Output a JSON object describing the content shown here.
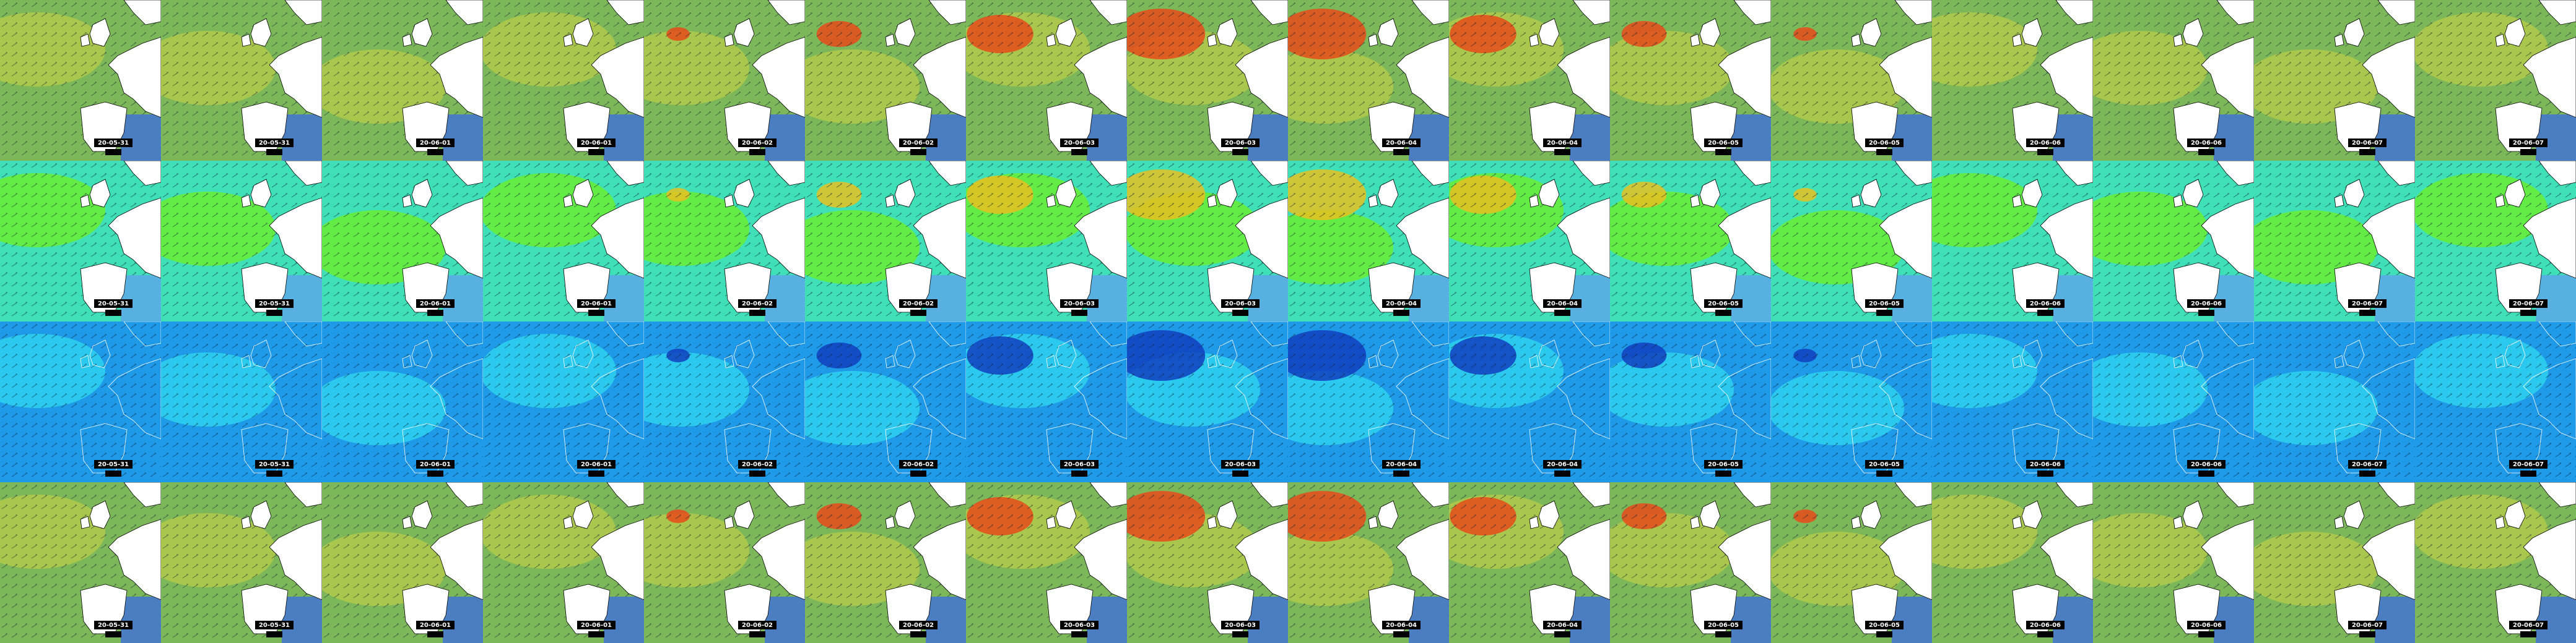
{
  "rows": [
    {
      "tiles": [
        {
          "date": "20-05-31"
        },
        {
          "date": "20-05-31"
        },
        {
          "date": "20-06-01"
        },
        {
          "date": "20-06-01"
        },
        {
          "date": "20-06-02"
        },
        {
          "date": "20-06-02"
        },
        {
          "date": "20-06-03"
        },
        {
          "date": "20-06-03"
        },
        {
          "date": "20-06-04"
        },
        {
          "date": "20-06-04"
        },
        {
          "date": "20-06-05"
        },
        {
          "date": "20-06-05"
        },
        {
          "date": "20-06-06"
        },
        {
          "date": "20-06-06"
        },
        {
          "date": "20-06-07"
        },
        {
          "date": "20-06-07"
        }
      ]
    },
    {
      "tiles": [
        {
          "date": "20-05-31"
        },
        {
          "date": "20-05-31"
        },
        {
          "date": "20-06-01"
        },
        {
          "date": "20-06-01"
        },
        {
          "date": "20-06-02"
        },
        {
          "date": "20-06-02"
        },
        {
          "date": "20-06-03"
        },
        {
          "date": "20-06-03"
        },
        {
          "date": "20-06-04"
        },
        {
          "date": "20-06-04"
        },
        {
          "date": "20-06-05"
        },
        {
          "date": "20-06-05"
        },
        {
          "date": "20-06-06"
        },
        {
          "date": "20-06-06"
        },
        {
          "date": "20-06-07"
        },
        {
          "date": "20-06-07"
        }
      ]
    },
    {
      "tiles": [
        {
          "date": "20-05-31"
        },
        {
          "date": "20-05-31"
        },
        {
          "date": "20-06-01"
        },
        {
          "date": "20-06-01"
        },
        {
          "date": "20-06-02"
        },
        {
          "date": "20-06-02"
        },
        {
          "date": "20-06-03"
        },
        {
          "date": "20-06-03"
        },
        {
          "date": "20-06-04"
        },
        {
          "date": "20-06-04"
        },
        {
          "date": "20-06-05"
        },
        {
          "date": "20-06-05"
        },
        {
          "date": "20-06-06"
        },
        {
          "date": "20-06-06"
        },
        {
          "date": "20-06-07"
        },
        {
          "date": "20-06-07"
        }
      ]
    },
    {
      "tiles": [
        {
          "date": "20-05-31"
        },
        {
          "date": "20-05-31"
        },
        {
          "date": "20-06-01"
        },
        {
          "date": "20-06-01"
        },
        {
          "date": "20-06-02"
        },
        {
          "date": "20-06-02"
        },
        {
          "date": "20-06-03"
        },
        {
          "date": "20-06-03"
        },
        {
          "date": "20-06-04"
        },
        {
          "date": "20-06-04"
        },
        {
          "date": "20-06-05"
        },
        {
          "date": "20-06-05"
        },
        {
          "date": "20-06-06"
        },
        {
          "date": "20-06-06"
        },
        {
          "date": "20-06-07"
        },
        {
          "date": "20-06-07"
        }
      ]
    }
  ]
}
